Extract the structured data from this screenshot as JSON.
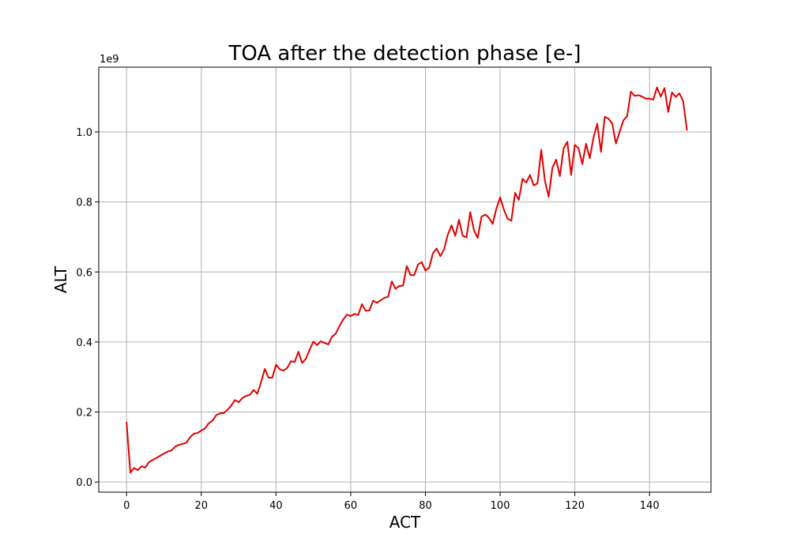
{
  "chart_data": {
    "type": "line",
    "title": "TOA after the detection phase [e-]",
    "xlabel": "ACT",
    "ylabel": "ALT",
    "y_offset_label": "1e9",
    "xlim": [
      -7.45,
      156.45
    ],
    "ylim": [
      -0.029,
      1.185
    ],
    "x_ticks": [
      0,
      20,
      40,
      60,
      80,
      100,
      120,
      140
    ],
    "x_tick_labels": [
      "0",
      "20",
      "40",
      "60",
      "80",
      "100",
      "120",
      "140"
    ],
    "y_ticks": [
      0.0,
      0.2,
      0.4,
      0.6,
      0.8,
      1.0
    ],
    "y_tick_labels": [
      "0.0",
      "0.2",
      "0.4",
      "0.6",
      "0.8",
      "1.0"
    ],
    "grid": true,
    "series": [
      {
        "color": "#e00000",
        "y": [
          0.17,
          0.027,
          0.04,
          0.034,
          0.045,
          0.041,
          0.057,
          0.063,
          0.069,
          0.075,
          0.081,
          0.087,
          0.09,
          0.101,
          0.106,
          0.109,
          0.112,
          0.128,
          0.138,
          0.14,
          0.147,
          0.153,
          0.168,
          0.175,
          0.191,
          0.196,
          0.197,
          0.206,
          0.218,
          0.234,
          0.228,
          0.24,
          0.246,
          0.249,
          0.263,
          0.252,
          0.285,
          0.323,
          0.298,
          0.298,
          0.335,
          0.322,
          0.318,
          0.326,
          0.345,
          0.343,
          0.372,
          0.34,
          0.352,
          0.378,
          0.401,
          0.391,
          0.402,
          0.397,
          0.393,
          0.415,
          0.424,
          0.446,
          0.464,
          0.478,
          0.474,
          0.48,
          0.477,
          0.508,
          0.489,
          0.49,
          0.518,
          0.512,
          0.519,
          0.526,
          0.529,
          0.573,
          0.552,
          0.56,
          0.561,
          0.617,
          0.591,
          0.591,
          0.621,
          0.628,
          0.604,
          0.612,
          0.653,
          0.667,
          0.645,
          0.665,
          0.707,
          0.733,
          0.703,
          0.749,
          0.703,
          0.699,
          0.771,
          0.719,
          0.697,
          0.758,
          0.764,
          0.755,
          0.737,
          0.781,
          0.813,
          0.778,
          0.752,
          0.746,
          0.826,
          0.806,
          0.866,
          0.855,
          0.877,
          0.847,
          0.853,
          0.949,
          0.86,
          0.815,
          0.898,
          0.921,
          0.874,
          0.953,
          0.972,
          0.877,
          0.963,
          0.953,
          0.908,
          0.966,
          0.925,
          0.984,
          1.023,
          0.943,
          1.043,
          1.038,
          1.024,
          0.967,
          1.0,
          1.033,
          1.045,
          1.115,
          1.103,
          1.105,
          1.101,
          1.095,
          1.095,
          1.092,
          1.127,
          1.101,
          1.125,
          1.057,
          1.113,
          1.1,
          1.11,
          1.088,
          1.006
        ]
      }
    ]
  }
}
